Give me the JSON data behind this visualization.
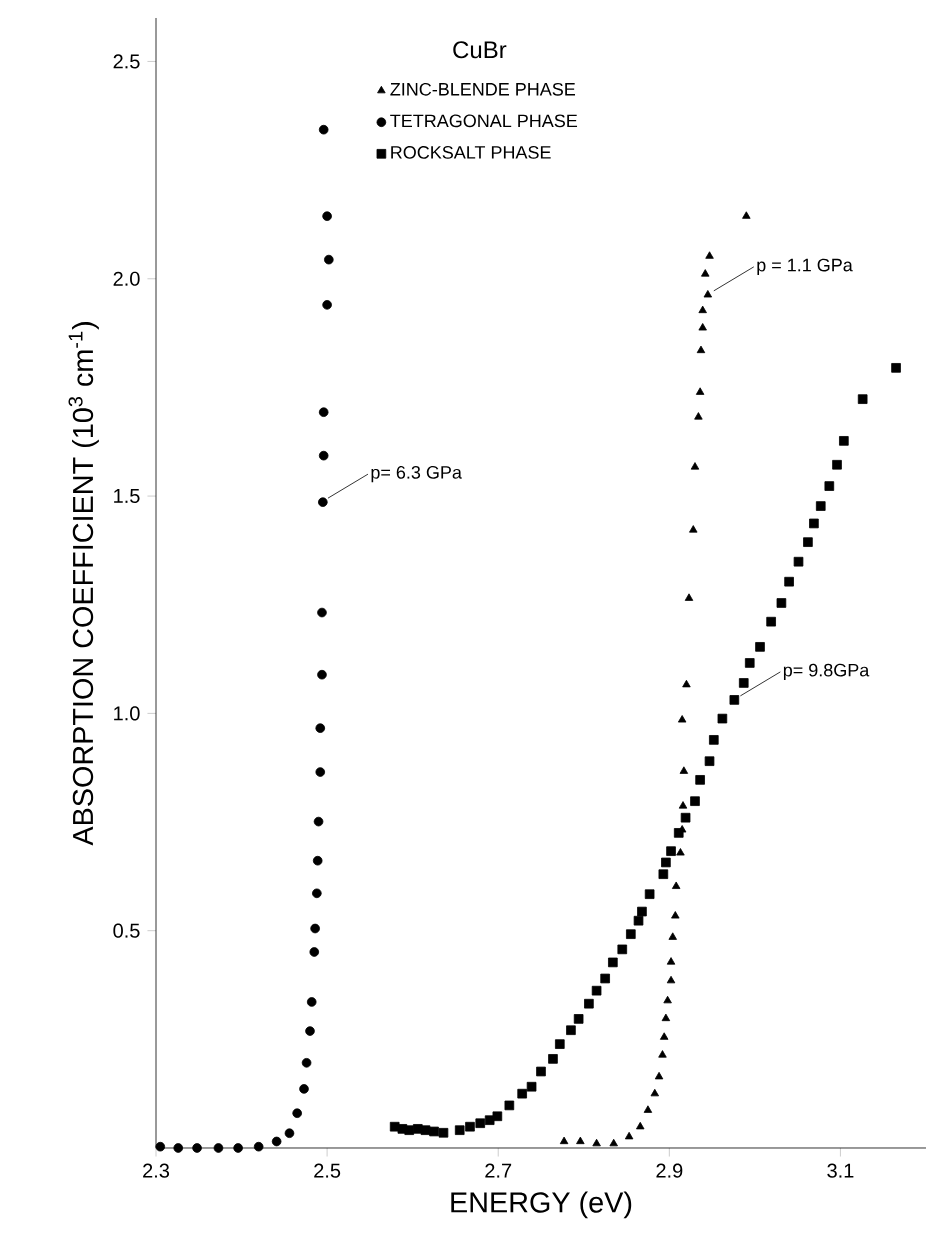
{
  "chart_data": {
    "type": "scatter",
    "title": "CuBr",
    "xlabel": "ENERGY (eV)",
    "ylabel": "ABSORPTION COEFFICIENT (10$^{3}$ cm$^{-1}$)",
    "xlim": [
      2.3,
      3.2
    ],
    "ylim": [
      0,
      2.6
    ],
    "xticks": [
      2.3,
      2.5,
      2.7,
      2.9,
      3.1
    ],
    "yticks": [
      {
        "value": 0.5,
        "label": "0.5"
      },
      {
        "value": 1,
        "label": "1.0"
      },
      {
        "value": 1.5,
        "label": "1.5"
      },
      {
        "value": 2,
        "label": "2.0"
      },
      {
        "value": 2.5,
        "label": "2.5"
      }
    ],
    "grid": false,
    "legend": "top",
    "series": [
      {
        "name": "ZINC-BLENDE PHASE",
        "color": "#000000",
        "marker": "triangle",
        "x": [
          2.777,
          2.796,
          2.815,
          2.835,
          2.853,
          2.866,
          2.875,
          2.883,
          2.888,
          2.892,
          2.894,
          2.896,
          2.898,
          2.902,
          2.902,
          2.904,
          2.907,
          2.908,
          2.913,
          2.915,
          2.916,
          2.917,
          2.915,
          2.92,
          2.923,
          2.928,
          2.93,
          2.934,
          2.936,
          2.937,
          2.939,
          2.939,
          2.945,
          2.942,
          2.947,
          2.99
        ],
        "values": [
          0.015,
          0.015,
          0.01,
          0.01,
          0.026,
          0.049,
          0.087,
          0.125,
          0.164,
          0.214,
          0.255,
          0.298,
          0.339,
          0.385,
          0.428,
          0.485,
          0.534,
          0.602,
          0.679,
          0.732,
          0.787,
          0.867,
          0.985,
          1.066,
          1.265,
          1.422,
          1.567,
          1.682,
          1.739,
          1.835,
          1.887,
          1.927,
          1.963,
          2.011,
          2.052,
          2.144
        ]
      },
      {
        "name": "TETRAGONAL PHASE",
        "color": "#000000",
        "marker": "circle",
        "x": [
          2.305,
          2.326,
          2.348,
          2.373,
          2.396,
          2.42,
          2.441,
          2.456,
          2.465,
          2.473,
          2.476,
          2.48,
          2.482,
          2.485,
          2.486,
          2.488,
          2.489,
          2.49,
          2.492,
          2.492,
          2.494,
          2.494,
          2.495,
          2.496,
          2.496,
          2.5,
          2.502,
          2.5,
          2.496
        ],
        "values": [
          0.003,
          0.0,
          0.0,
          0.0,
          0.0,
          0.003,
          0.015,
          0.034,
          0.08,
          0.136,
          0.196,
          0.269,
          0.336,
          0.451,
          0.505,
          0.586,
          0.661,
          0.751,
          0.865,
          0.966,
          1.089,
          1.232,
          1.486,
          1.593,
          1.693,
          1.94,
          2.044,
          2.144,
          2.343
        ]
      },
      {
        "name": "ROCKSALT PHASE",
        "color": "#000000",
        "marker": "square",
        "x": [
          2.579,
          2.588,
          2.596,
          2.606,
          2.615,
          2.625,
          2.636,
          2.655,
          2.667,
          2.679,
          2.69,
          2.699,
          2.713,
          2.728,
          2.739,
          2.75,
          2.764,
          2.772,
          2.785,
          2.794,
          2.806,
          2.815,
          2.825,
          2.834,
          2.845,
          2.855,
          2.864,
          2.868,
          2.877,
          2.893,
          2.896,
          2.902,
          2.911,
          2.919,
          2.93,
          2.936,
          2.947,
          2.952,
          2.962,
          2.976,
          2.987,
          2.994,
          3.006,
          3.019,
          3.031,
          3.04,
          3.051,
          3.062,
          3.069,
          3.077,
          3.087,
          3.096,
          3.104,
          3.126,
          3.165
        ],
        "values": [
          0.049,
          0.044,
          0.041,
          0.044,
          0.041,
          0.038,
          0.035,
          0.041,
          0.049,
          0.057,
          0.064,
          0.073,
          0.098,
          0.125,
          0.141,
          0.176,
          0.205,
          0.239,
          0.271,
          0.297,
          0.332,
          0.362,
          0.39,
          0.427,
          0.457,
          0.492,
          0.523,
          0.544,
          0.584,
          0.63,
          0.657,
          0.683,
          0.725,
          0.76,
          0.798,
          0.847,
          0.89,
          0.939,
          0.988,
          1.031,
          1.07,
          1.116,
          1.153,
          1.211,
          1.254,
          1.303,
          1.349,
          1.394,
          1.437,
          1.477,
          1.523,
          1.572,
          1.627,
          1.723,
          1.795
        ]
      }
    ],
    "annotations": [
      {
        "text": "p= 6.3 GPa",
        "x": 2.494,
        "y": 1.486
      },
      {
        "text": "p = 1.1 GPa",
        "x": 2.945,
        "y": 1.963
      },
      {
        "text": "p= 9.8GPa",
        "x": 2.976,
        "y": 1.031
      }
    ]
  }
}
